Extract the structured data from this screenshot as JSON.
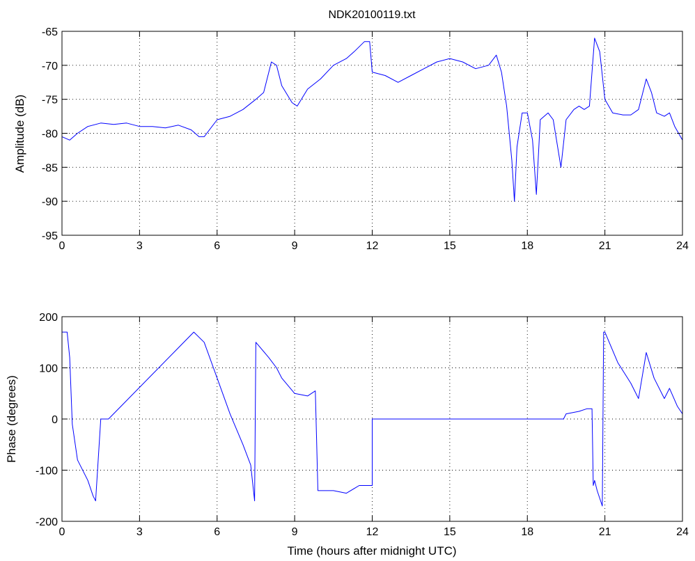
{
  "figure": {
    "title": "NDK20100119.txt"
  },
  "chart_data": [
    {
      "type": "line",
      "title": "NDK20100119.txt",
      "xlabel": "",
      "ylabel": "Amplitude (dB)",
      "xlim": [
        0,
        24
      ],
      "ylim": [
        -95,
        -65
      ],
      "xticks": [
        0,
        3,
        6,
        9,
        12,
        15,
        18,
        21,
        24
      ],
      "yticks": [
        -95,
        -90,
        -85,
        -80,
        -75,
        -70,
        -65
      ],
      "grid": true,
      "color": "#0000ff",
      "series": [
        {
          "x": [
            0,
            0.3,
            0.6,
            1.0,
            1.5,
            2.0,
            2.5,
            3.0,
            3.5,
            4.0,
            4.5,
            5.0,
            5.3,
            5.5,
            6.0,
            6.5,
            7.0,
            7.5,
            7.8,
            8.1,
            8.3,
            8.5,
            8.9,
            9.1,
            9.5,
            10.0,
            10.5,
            11.0,
            11.3,
            11.7,
            11.9,
            12.0,
            12.5,
            13.0,
            13.5,
            14.0,
            14.5,
            15.0,
            15.5,
            16.0,
            16.5,
            16.8,
            17.0,
            17.2,
            17.4,
            17.5,
            17.6,
            17.8,
            18.0,
            18.2,
            18.35,
            18.5,
            18.8,
            19.0,
            19.3,
            19.5,
            19.8,
            20.0,
            20.2,
            20.4,
            20.6,
            20.8,
            21.0,
            21.3,
            21.7,
            22.0,
            22.3,
            22.6,
            22.8,
            23.0,
            23.3,
            23.5,
            23.7,
            24.0
          ],
          "y": [
            -80.5,
            -81,
            -80,
            -79,
            -78.5,
            -78.7,
            -78.5,
            -79,
            -79,
            -79.2,
            -78.8,
            -79.5,
            -80.5,
            -80.5,
            -78,
            -77.5,
            -76.5,
            -75,
            -74,
            -69.5,
            -70,
            -73,
            -75.5,
            -76,
            -73.5,
            -72,
            -70,
            -69,
            -68,
            -66.5,
            -66.5,
            -71,
            -71.5,
            -72.5,
            -71.5,
            -70.5,
            -69.5,
            -69,
            -69.5,
            -70.5,
            -70,
            -68.5,
            -71,
            -76,
            -84,
            -90,
            -82,
            -77,
            -77,
            -81,
            -89,
            -78,
            -77,
            -78,
            -85,
            -78,
            -76.5,
            -76,
            -76.5,
            -76,
            -66,
            -68,
            -75,
            -77,
            -77.3,
            -77.3,
            -76.5,
            -72,
            -74,
            -77,
            -77.5,
            -77,
            -79,
            -81
          ]
        }
      ]
    },
    {
      "type": "line",
      "title": "",
      "xlabel": "Time (hours after midnight UTC)",
      "ylabel": "Phase (degrees)",
      "xlim": [
        0,
        24
      ],
      "ylim": [
        -200,
        200
      ],
      "xticks": [
        0,
        3,
        6,
        9,
        12,
        15,
        18,
        21,
        24
      ],
      "yticks": [
        -200,
        -100,
        0,
        100,
        200
      ],
      "grid": true,
      "color": "#0000ff",
      "series": [
        {
          "x": [
            0,
            0.2,
            0.3,
            0.4,
            0.6,
            1.0,
            1.2,
            1.3,
            1.5,
            1.8,
            5.1,
            5.5,
            6.0,
            6.5,
            7.0,
            7.3,
            7.45,
            7.5,
            8.0,
            8.3,
            8.5,
            9.0,
            9.5,
            9.8,
            9.9,
            10.5,
            11.0,
            11.5,
            12.0,
            12.0,
            19.4,
            19.5,
            20.0,
            20.3,
            20.5,
            20.55,
            20.6,
            20.7,
            20.9,
            20.95,
            21.0,
            21.5,
            22.0,
            22.3,
            22.6,
            22.9,
            23.3,
            23.5,
            23.8,
            24.0
          ],
          "y": [
            170,
            170,
            120,
            -10,
            -80,
            -120,
            -150,
            -160,
            0,
            0,
            170,
            150,
            80,
            10,
            -50,
            -90,
            -160,
            150,
            120,
            100,
            80,
            50,
            45,
            55,
            -140,
            -140,
            -145,
            -130,
            -130,
            0,
            0,
            10,
            15,
            20,
            20,
            -130,
            -120,
            -140,
            -170,
            170,
            170,
            110,
            70,
            40,
            130,
            80,
            40,
            60,
            25,
            10
          ]
        }
      ]
    }
  ]
}
